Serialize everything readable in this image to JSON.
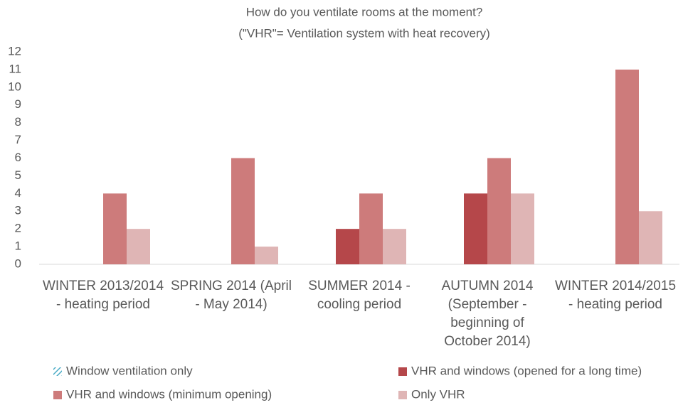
{
  "chart_data": {
    "type": "bar",
    "title": "How do you ventilate rooms at the moment?",
    "subtitle": "(\"VHR\"= Ventilation system with heat recovery)",
    "categories": [
      "WINTER 2013/2014 - heating period",
      "SPRING 2014 (April - May 2014)",
      "SUMMER 2014 - cooling period",
      "AUTUMN 2014 (September - beginning of October 2014)",
      "WINTER 2014/2015 - heating period"
    ],
    "series": [
      {
        "name": "Window ventilation only",
        "color": "#4bacc6",
        "values": [
          0,
          0,
          0,
          0,
          0
        ]
      },
      {
        "name": "VHR and windows (opened for a long time)",
        "color": "#b5474a",
        "values": [
          0,
          0,
          2,
          4,
          0
        ]
      },
      {
        "name": "VHR and windows (minimum opening)",
        "color": "#cd7b7b",
        "values": [
          4,
          6,
          4,
          6,
          11
        ]
      },
      {
        "name": "Only VHR",
        "color": "#dfb5b5",
        "values": [
          2,
          1,
          2,
          4,
          3
        ]
      }
    ],
    "ylim": [
      0,
      12
    ],
    "yticks": [
      0,
      1,
      2,
      3,
      4,
      5,
      6,
      7,
      8,
      9,
      10,
      11,
      12
    ],
    "grid": false
  }
}
